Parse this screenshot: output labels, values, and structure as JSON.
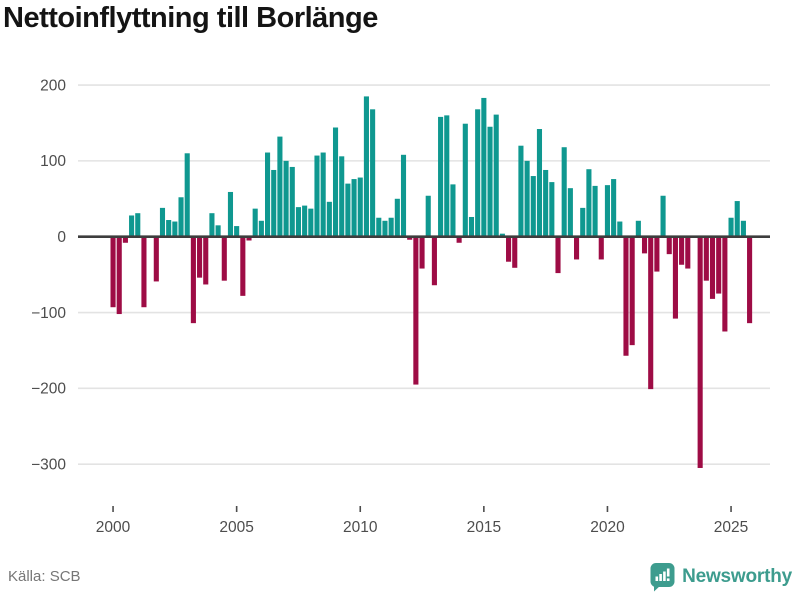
{
  "title": "Nettoinflyttning till Borlänge",
  "source": "Källa: SCB",
  "brand": {
    "name": "Newsworthy"
  },
  "colors": {
    "positive_bar": "#0f9890",
    "negative_bar": "#9e0c45",
    "gridline": "#e3e3e3",
    "zero_line": "#3d3d3d",
    "axis_text": "#4d4d4d",
    "title_text": "#141414",
    "source_text": "#767676",
    "brand_teal": "#3d9c8e",
    "background": "#ffffff"
  },
  "chart_data": {
    "type": "bar",
    "title": "Nettoinflyttning till Borlänge",
    "xlabel": "",
    "ylabel": "",
    "frequency": "quarterly",
    "x_tick_labels": [
      "2000",
      "2005",
      "2010",
      "2015",
      "2020",
      "2025"
    ],
    "y_ticks": [
      200,
      100,
      0,
      -100,
      -200,
      -300
    ],
    "ylim": [
      -330,
      215
    ],
    "grid": "horizontal",
    "legend": "none",
    "series": [
      {
        "year": 2000,
        "values": [
          -93,
          -102,
          -8,
          28
        ]
      },
      {
        "year": 2001,
        "values": [
          31,
          -93,
          0,
          -59
        ]
      },
      {
        "year": 2002,
        "values": [
          38,
          22,
          20,
          52
        ]
      },
      {
        "year": 2003,
        "values": [
          110,
          -114,
          -54,
          -63
        ]
      },
      {
        "year": 2004,
        "values": [
          31,
          15,
          -58,
          59
        ]
      },
      {
        "year": 2005,
        "values": [
          14,
          -78,
          -5,
          37
        ]
      },
      {
        "year": 2006,
        "values": [
          21,
          111,
          88,
          132
        ]
      },
      {
        "year": 2007,
        "values": [
          100,
          92,
          39,
          41
        ]
      },
      {
        "year": 2008,
        "values": [
          37,
          107,
          111,
          46
        ]
      },
      {
        "year": 2009,
        "values": [
          144,
          106,
          70,
          76
        ]
      },
      {
        "year": 2010,
        "values": [
          78,
          185,
          168,
          25
        ]
      },
      {
        "year": 2011,
        "values": [
          21,
          25,
          50,
          108
        ]
      },
      {
        "year": 2012,
        "values": [
          -4,
          -195,
          -42,
          54
        ]
      },
      {
        "year": 2013,
        "values": [
          -64,
          158,
          160,
          69
        ]
      },
      {
        "year": 2014,
        "values": [
          -8,
          149,
          26,
          168
        ]
      },
      {
        "year": 2015,
        "values": [
          183,
          145,
          161,
          4
        ]
      },
      {
        "year": 2016,
        "values": [
          -33,
          -41,
          120,
          100
        ]
      },
      {
        "year": 2017,
        "values": [
          80,
          142,
          88,
          72
        ]
      },
      {
        "year": 2018,
        "values": [
          -48,
          118,
          64,
          -30
        ]
      },
      {
        "year": 2019,
        "values": [
          38,
          89,
          67,
          -30
        ]
      },
      {
        "year": 2020,
        "values": [
          68,
          76,
          20,
          -157
        ]
      },
      {
        "year": 2021,
        "values": [
          -143,
          21,
          -22,
          -201
        ]
      },
      {
        "year": 2022,
        "values": [
          -46,
          54,
          -23,
          -108
        ]
      },
      {
        "year": 2023,
        "values": [
          -37,
          -42,
          0,
          -305
        ]
      },
      {
        "year": 2024,
        "values": [
          -58,
          -82,
          -75,
          -125
        ]
      },
      {
        "year": 2025,
        "values": [
          25,
          47,
          21,
          -114
        ]
      }
    ]
  }
}
